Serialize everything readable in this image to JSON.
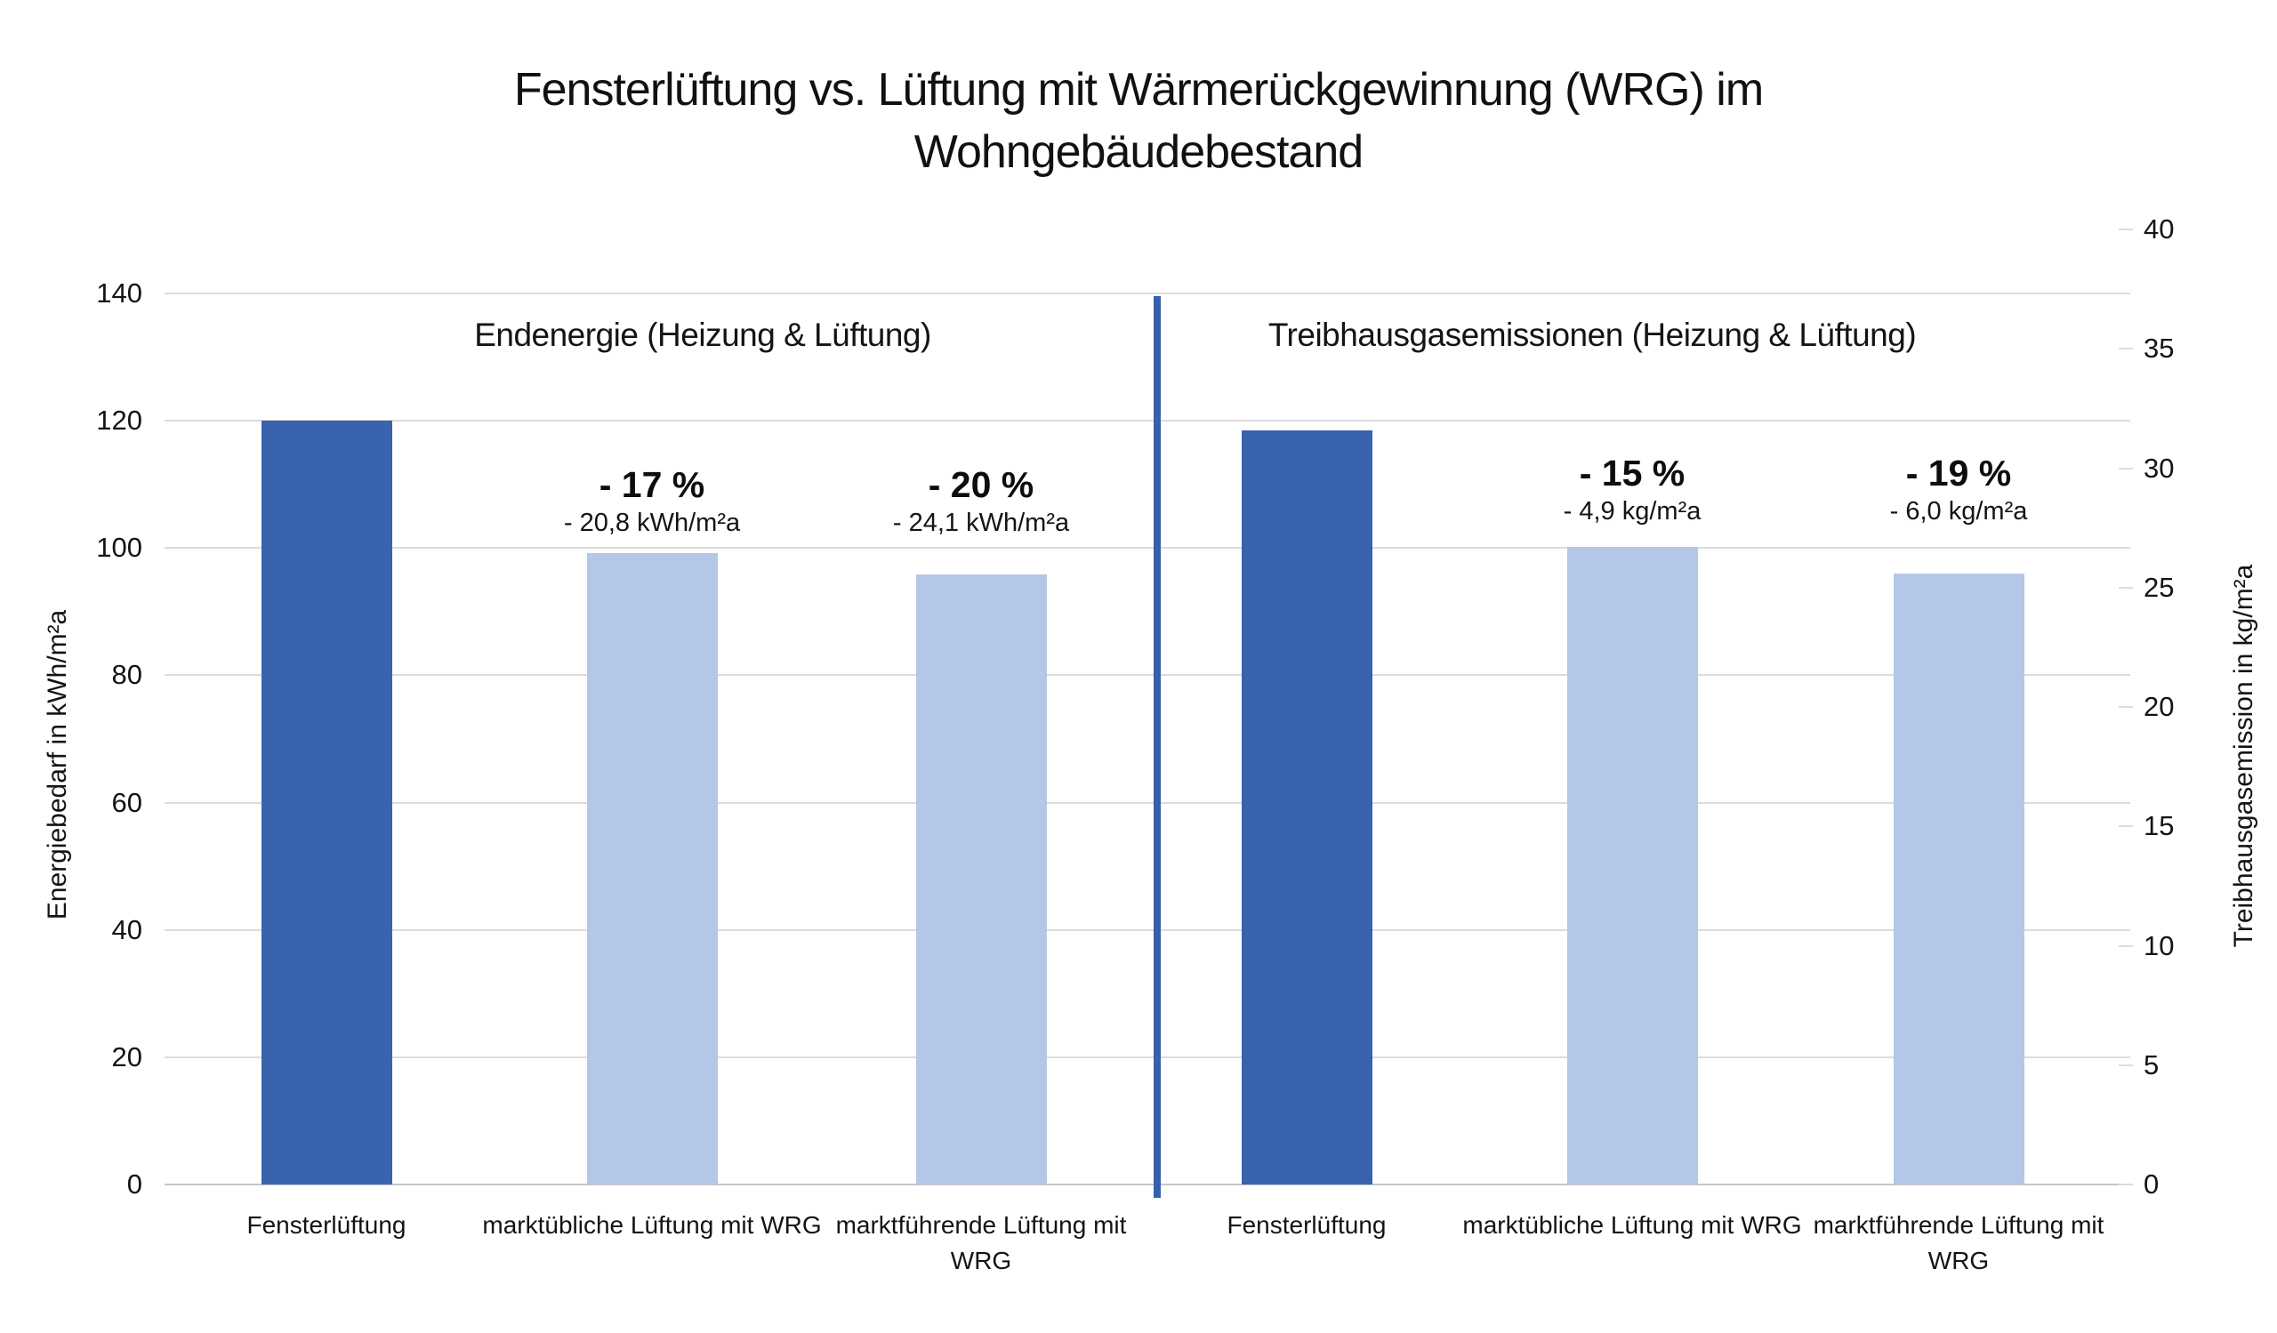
{
  "title": "Fensterlüftung vs. Lüftung mit Wärmerückgewinnung (WRG) im Wohngebäudebestand",
  "chart_data": {
    "type": "bar",
    "title": "Fensterlüftung vs. Lüftung mit Wärmerückgewinnung (WRG) im Wohngebäudebestand",
    "grid": "horizontal",
    "legend": "none",
    "sections": [
      {
        "id": "endenergie",
        "header": "Endenergie (Heizung & Lüftung)",
        "value_axis": "left",
        "unit": "kWh/m²a",
        "categories": [
          "Fensterlüftung",
          "marktübliche Lüftung mit WRG",
          "marktführende Lüftung mit WRG"
        ],
        "values": [
          120,
          99.2,
          95.9
        ],
        "annotations": [
          null,
          {
            "percent": "- 17 %",
            "delta": "- 20,8 kWh/m²a"
          },
          {
            "percent": "- 20 %",
            "delta": "- 24,1 kWh/m²a"
          }
        ]
      },
      {
        "id": "treibhausgas",
        "header": "Treibhausgasemissionen (Heizung & Lüftung)",
        "value_axis": "right",
        "unit": "kg/m²a",
        "categories": [
          "Fensterlüftung",
          "marktübliche Lüftung mit WRG",
          "marktführende Lüftung mit WRG"
        ],
        "values": [
          31.6,
          26.7,
          25.6
        ],
        "annotations": [
          null,
          {
            "percent": "- 15 %",
            "delta": "- 4,9 kg/m²a"
          },
          {
            "percent": "- 19 %",
            "delta": "- 6,0 kg/m²a"
          }
        ]
      }
    ],
    "left_axis": {
      "label": "Energiebedarf in kWh/m²a",
      "min": 0,
      "max": 140,
      "step": 20,
      "ticks": [
        0,
        20,
        40,
        60,
        80,
        100,
        120,
        140
      ]
    },
    "right_axis": {
      "label": "Treibhausgasemission in kg/m²a",
      "min": 0,
      "max": 40,
      "step": 5,
      "ticks": [
        0,
        5,
        10,
        15,
        20,
        25,
        30,
        35,
        40
      ]
    },
    "colors": {
      "bar_dark": "#3A63AD",
      "bar_light": "#B4C7E6",
      "divider": "#3560AC",
      "gridline": "#DCDCDC",
      "baseline": "#C6C6C6"
    }
  }
}
